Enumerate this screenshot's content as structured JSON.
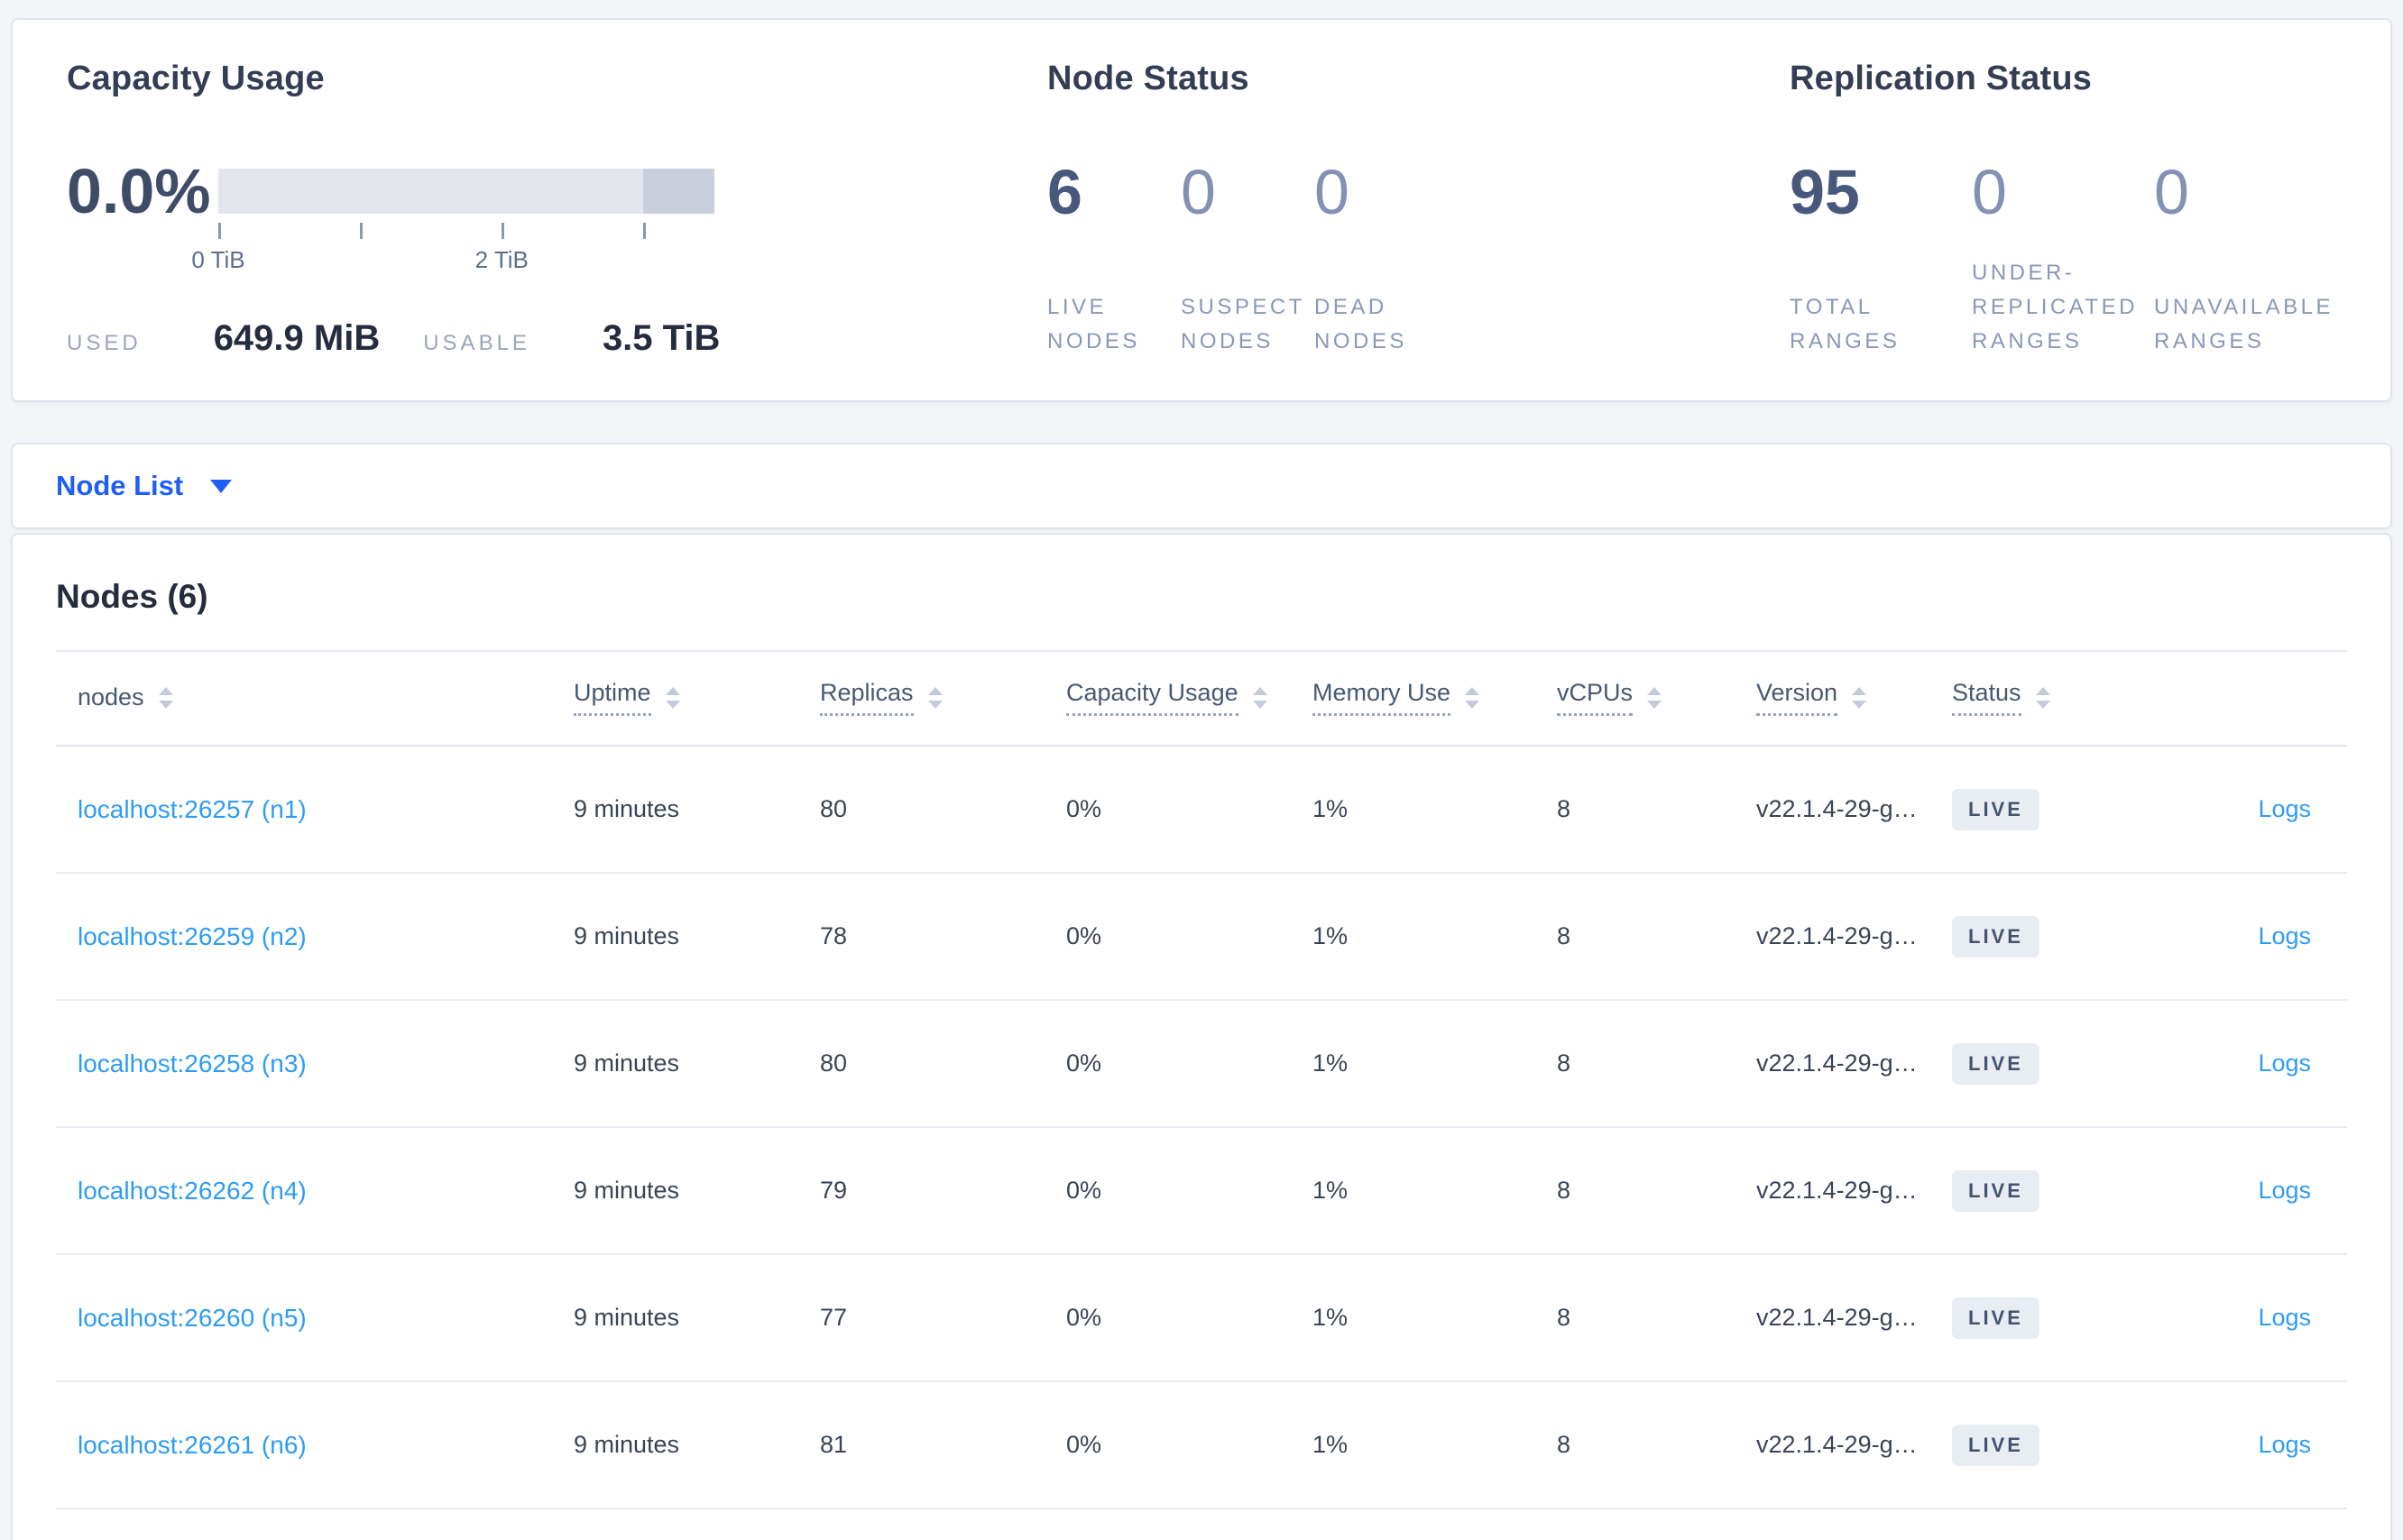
{
  "capacity": {
    "title": "Capacity Usage",
    "percent": "0.0%",
    "tick_labels": [
      "0 TiB",
      "2 TiB"
    ],
    "used_label": "USED",
    "used_value": "649.9 MiB",
    "usable_label": "USABLE",
    "usable_value": "3.5 TiB"
  },
  "node_status": {
    "title": "Node Status",
    "stats": [
      {
        "value": "6",
        "label": "LIVE NODES"
      },
      {
        "value": "0",
        "label": "SUSPECT NODES"
      },
      {
        "value": "0",
        "label": "DEAD NODES"
      }
    ]
  },
  "replication": {
    "title": "Replication Status",
    "stats": [
      {
        "value": "95",
        "label": "TOTAL RANGES"
      },
      {
        "value": "0",
        "label": "UNDER-REPLICATED RANGES"
      },
      {
        "value": "0",
        "label": "UNAVAILABLE RANGES"
      }
    ]
  },
  "view_selector": {
    "label": "Node List"
  },
  "nodes_table": {
    "title": "Nodes (6)",
    "columns": [
      {
        "key": "node",
        "label": "nodes",
        "underline": false
      },
      {
        "key": "uptime",
        "label": "Uptime",
        "underline": true
      },
      {
        "key": "replicas",
        "label": "Replicas",
        "underline": true
      },
      {
        "key": "capacity_usage",
        "label": "Capacity Usage",
        "underline": true
      },
      {
        "key": "memory_use",
        "label": "Memory Use",
        "underline": true
      },
      {
        "key": "vcpus",
        "label": "vCPUs",
        "underline": true
      },
      {
        "key": "version",
        "label": "Version",
        "underline": true
      },
      {
        "key": "status",
        "label": "Status",
        "underline": true
      },
      {
        "key": "logs",
        "label": "",
        "underline": false
      }
    ],
    "rows": [
      {
        "node": "localhost:26257 (n1)",
        "uptime": "9 minutes",
        "replicas": "80",
        "capacity_usage": "0%",
        "memory_use": "1%",
        "vcpus": "8",
        "version": "v22.1.4-29-g…",
        "status": "LIVE",
        "logs": "Logs"
      },
      {
        "node": "localhost:26259 (n2)",
        "uptime": "9 minutes",
        "replicas": "78",
        "capacity_usage": "0%",
        "memory_use": "1%",
        "vcpus": "8",
        "version": "v22.1.4-29-g…",
        "status": "LIVE",
        "logs": "Logs"
      },
      {
        "node": "localhost:26258 (n3)",
        "uptime": "9 minutes",
        "replicas": "80",
        "capacity_usage": "0%",
        "memory_use": "1%",
        "vcpus": "8",
        "version": "v22.1.4-29-g…",
        "status": "LIVE",
        "logs": "Logs"
      },
      {
        "node": "localhost:26262 (n4)",
        "uptime": "9 minutes",
        "replicas": "79",
        "capacity_usage": "0%",
        "memory_use": "1%",
        "vcpus": "8",
        "version": "v22.1.4-29-g…",
        "status": "LIVE",
        "logs": "Logs"
      },
      {
        "node": "localhost:26260 (n5)",
        "uptime": "9 minutes",
        "replicas": "77",
        "capacity_usage": "0%",
        "memory_use": "1%",
        "vcpus": "8",
        "version": "v22.1.4-29-g…",
        "status": "LIVE",
        "logs": "Logs"
      },
      {
        "node": "localhost:26261 (n6)",
        "uptime": "9 minutes",
        "replicas": "81",
        "capacity_usage": "0%",
        "memory_use": "1%",
        "vcpus": "8",
        "version": "v22.1.4-29-g…",
        "status": "LIVE",
        "logs": "Logs"
      }
    ]
  },
  "colors": {
    "accent_blue": "#1e5ef5",
    "link_blue": "#2e9cf3",
    "badge_bg": "#e8edf3",
    "badge_text": "#44536e",
    "bar_light": "#e3e5ed",
    "bar_dark": "#c9cfda"
  }
}
